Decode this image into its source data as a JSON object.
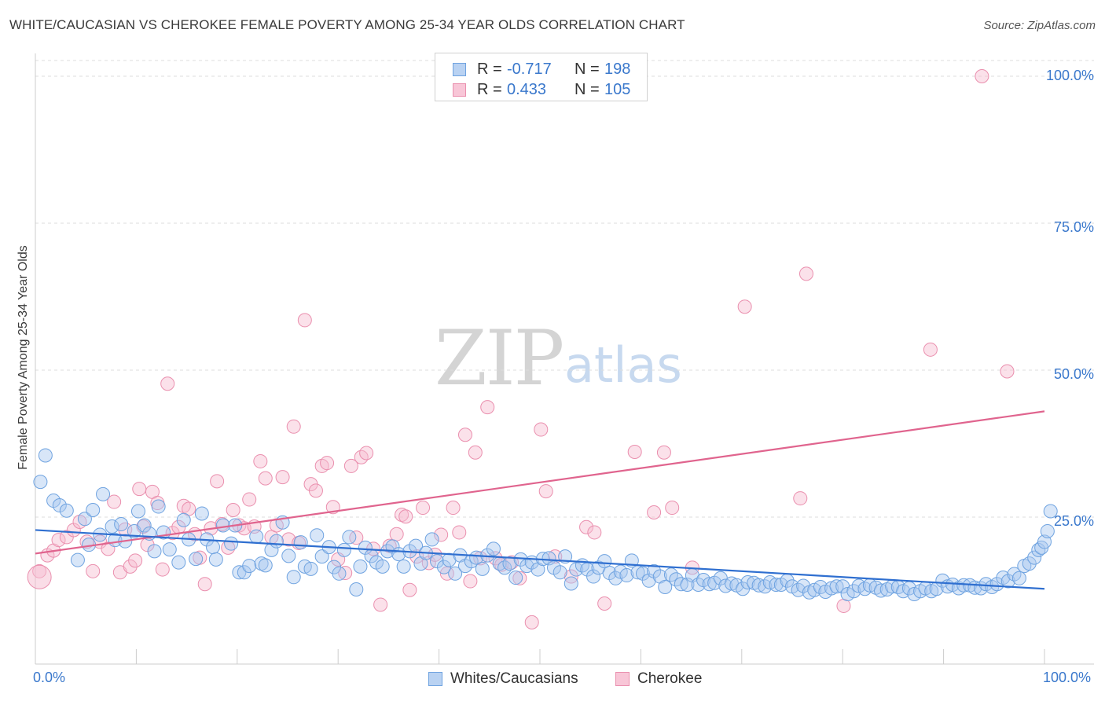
{
  "title": "WHITE/CAUCASIAN VS CHEROKEE FEMALE POVERTY AMONG 25-34 YEAR OLDS CORRELATION CHART",
  "source": "Source: ZipAtlas.com",
  "watermark": {
    "zip": "ZIP",
    "atlas": "atlas"
  },
  "legend": {
    "rows": [
      {
        "r_label": "R =",
        "r_value": "-0.717",
        "n_label": "N =",
        "n_value": "198",
        "color": "#6fa3e0"
      },
      {
        "r_label": "R =",
        "r_value": "0.433",
        "n_label": "N =",
        "n_value": "105",
        "color": "#ef8fb0"
      }
    ]
  },
  "bottom_legend": {
    "blue": "Whites/Caucasians",
    "pink": "Cherokee"
  },
  "colors": {
    "blue_fill": "#a9c8ef",
    "blue_stroke": "#6fa3e0",
    "blue_line": "#2f6fd0",
    "pink_fill": "#f6bcd0",
    "pink_stroke": "#ea8fae",
    "pink_line": "#e0648e",
    "axis_text": "#3a78cc",
    "grid": "#dddddd"
  },
  "chart_data": {
    "type": "scatter",
    "title": "WHITE/CAUCASIAN VS CHEROKEE FEMALE POVERTY AMONG 25-34 YEAR OLDS CORRELATION CHART",
    "xlabel": "",
    "ylabel": "Female Poverty Among 25-34 Year Olds",
    "xlim": [
      0,
      100
    ],
    "ylim": [
      0,
      103
    ],
    "x_tick_labels": [
      "0.0%",
      "100.0%"
    ],
    "y_ticks": [
      25,
      50,
      75,
      100
    ],
    "y_tick_labels": [
      "25.0%",
      "50.0%",
      "75.0%",
      "100.0%"
    ],
    "grid": true,
    "legend_position": "top-center",
    "series": [
      {
        "name": "Whites/Caucasians",
        "r": -0.717,
        "n": 198,
        "trend": {
          "x": [
            0,
            100
          ],
          "y": [
            22.8,
            12.8
          ]
        },
        "points": [
          [
            0.5,
            31
          ],
          [
            1,
            35.5
          ],
          [
            1.8,
            27.8
          ],
          [
            2.4,
            27
          ],
          [
            3.1,
            26.1
          ],
          [
            4.2,
            17.7
          ],
          [
            4.9,
            24.7
          ],
          [
            5.3,
            20.3
          ],
          [
            5.7,
            26.2
          ],
          [
            6.4,
            22
          ],
          [
            6.7,
            28.9
          ],
          [
            7.6,
            23.4
          ],
          [
            7.9,
            21.1
          ],
          [
            8.5,
            23.8
          ],
          [
            8.9,
            20.9
          ],
          [
            9.8,
            22.6
          ],
          [
            10.2,
            26
          ],
          [
            10.8,
            23.6
          ],
          [
            11.3,
            22.2
          ],
          [
            11.8,
            19.2
          ],
          [
            12.2,
            26.8
          ],
          [
            12.7,
            22.4
          ],
          [
            13.3,
            19.5
          ],
          [
            14.2,
            17.3
          ],
          [
            14.7,
            24.5
          ],
          [
            15.2,
            21.2
          ],
          [
            15.9,
            17.9
          ],
          [
            16.5,
            25.6
          ],
          [
            17,
            21.2
          ],
          [
            17.6,
            19.9
          ],
          [
            17.9,
            17.8
          ],
          [
            18.6,
            23.6
          ],
          [
            19.4,
            20.5
          ],
          [
            19.8,
            23.6
          ],
          [
            20.2,
            15.6
          ],
          [
            20.7,
            15.6
          ],
          [
            21.2,
            16.7
          ],
          [
            21.9,
            21.7
          ],
          [
            22.4,
            17.1
          ],
          [
            22.8,
            16.8
          ],
          [
            23.4,
            19.4
          ],
          [
            23.9,
            20.9
          ],
          [
            24.5,
            24.1
          ],
          [
            25.1,
            18.4
          ],
          [
            25.6,
            14.8
          ],
          [
            26.3,
            20.7
          ],
          [
            26.7,
            16.6
          ],
          [
            27.3,
            16.2
          ],
          [
            27.9,
            21.9
          ],
          [
            28.4,
            18.3
          ],
          [
            29.1,
            19.9
          ],
          [
            29.6,
            16.5
          ],
          [
            30.1,
            15.4
          ],
          [
            30.6,
            19.4
          ],
          [
            31.1,
            21.6
          ],
          [
            31.8,
            12.7
          ],
          [
            32.2,
            16.6
          ],
          [
            32.7,
            19.8
          ],
          [
            33.3,
            18.4
          ],
          [
            33.8,
            17.3
          ],
          [
            34.4,
            16.6
          ],
          [
            34.9,
            19.2
          ],
          [
            35.4,
            20
          ],
          [
            36,
            18.7
          ],
          [
            36.5,
            16.6
          ],
          [
            37.1,
            19.2
          ],
          [
            37.7,
            20.1
          ],
          [
            38.2,
            17.1
          ],
          [
            38.7,
            18.9
          ],
          [
            39.3,
            21.2
          ],
          [
            39.8,
            17.5
          ],
          [
            40.5,
            16.5
          ],
          [
            41,
            17.7
          ],
          [
            41.6,
            15.4
          ],
          [
            42.1,
            18.5
          ],
          [
            42.6,
            16.7
          ],
          [
            43.2,
            17.5
          ],
          [
            43.7,
            18.1
          ],
          [
            44.3,
            16.2
          ],
          [
            44.8,
            18.5
          ],
          [
            45.4,
            19.6
          ],
          [
            46,
            17.1
          ],
          [
            46.5,
            16.4
          ],
          [
            47,
            17.1
          ],
          [
            47.6,
            14.7
          ],
          [
            48.1,
            17.8
          ],
          [
            48.7,
            16.7
          ],
          [
            49.2,
            17.3
          ],
          [
            49.8,
            16.1
          ],
          [
            50.3,
            17.9
          ],
          [
            50.9,
            18
          ],
          [
            51.4,
            16.4
          ],
          [
            52,
            15.6
          ],
          [
            52.5,
            18.3
          ],
          [
            53.1,
            13.7
          ],
          [
            53.6,
            16.1
          ],
          [
            54.2,
            16.8
          ],
          [
            54.7,
            16.1
          ],
          [
            55.3,
            14.9
          ],
          [
            55.8,
            16.4
          ],
          [
            56.4,
            17.5
          ],
          [
            56.9,
            15.5
          ],
          [
            57.5,
            14.6
          ],
          [
            58,
            15.7
          ],
          [
            58.6,
            15.1
          ],
          [
            59.1,
            17.6
          ],
          [
            59.7,
            15.6
          ],
          [
            60.2,
            15.4
          ],
          [
            60.8,
            14.2
          ],
          [
            61.3,
            15.8
          ],
          [
            61.9,
            14.9
          ],
          [
            62.4,
            13.1
          ],
          [
            63,
            15.2
          ],
          [
            63.5,
            14.4
          ],
          [
            64,
            13.6
          ],
          [
            64.6,
            13.5
          ],
          [
            65.1,
            15.1
          ],
          [
            65.7,
            13.5
          ],
          [
            66.2,
            14.3
          ],
          [
            66.8,
            13.6
          ],
          [
            67.3,
            13.8
          ],
          [
            67.9,
            14.6
          ],
          [
            68.4,
            13.3
          ],
          [
            69,
            13.7
          ],
          [
            69.5,
            13.4
          ],
          [
            70.1,
            12.8
          ],
          [
            70.6,
            13.9
          ],
          [
            71.2,
            13.8
          ],
          [
            71.7,
            13.4
          ],
          [
            72.3,
            13.2
          ],
          [
            72.8,
            13.9
          ],
          [
            73.4,
            13.5
          ],
          [
            73.9,
            13.5
          ],
          [
            74.5,
            14.2
          ],
          [
            75,
            13.2
          ],
          [
            75.6,
            12.6
          ],
          [
            76.1,
            13.3
          ],
          [
            76.7,
            12.2
          ],
          [
            77.2,
            12.6
          ],
          [
            77.8,
            13.1
          ],
          [
            78.3,
            12.3
          ],
          [
            78.9,
            12.9
          ],
          [
            79.4,
            13.2
          ],
          [
            80,
            13.2
          ],
          [
            80.5,
            11.9
          ],
          [
            81.1,
            12.4
          ],
          [
            81.6,
            13.3
          ],
          [
            82.2,
            12.8
          ],
          [
            82.7,
            13.4
          ],
          [
            83.3,
            13
          ],
          [
            83.8,
            12.5
          ],
          [
            84.4,
            12.7
          ],
          [
            84.9,
            13.2
          ],
          [
            85.5,
            13.1
          ],
          [
            86,
            12.4
          ],
          [
            86.6,
            12.9
          ],
          [
            87.1,
            11.9
          ],
          [
            87.7,
            12.4
          ],
          [
            88.2,
            12.9
          ],
          [
            88.8,
            12.4
          ],
          [
            89.3,
            12.8
          ],
          [
            89.9,
            14.2
          ],
          [
            90.4,
            13.2
          ],
          [
            90.9,
            13.5
          ],
          [
            91.5,
            12.9
          ],
          [
            92,
            13.4
          ],
          [
            92.6,
            13.4
          ],
          [
            93.1,
            13
          ],
          [
            93.7,
            12.9
          ],
          [
            94.2,
            13.6
          ],
          [
            94.8,
            13.1
          ],
          [
            95.3,
            13.6
          ],
          [
            95.9,
            14.7
          ],
          [
            96.4,
            14.1
          ],
          [
            97,
            15.3
          ],
          [
            97.5,
            14.6
          ],
          [
            98,
            16.7
          ],
          [
            98.5,
            17.1
          ],
          [
            99,
            18.1
          ],
          [
            99.4,
            19.4
          ],
          [
            99.7,
            19.8
          ],
          [
            100,
            20.8
          ],
          [
            100.3,
            22.6
          ],
          [
            100.6,
            26
          ]
        ]
      },
      {
        "name": "Cherokee",
        "r": 0.433,
        "n": 105,
        "trend": {
          "x": [
            0,
            100
          ],
          "y": [
            18.8,
            43
          ]
        },
        "points": [
          [
            0.4,
            15.8
          ],
          [
            1.2,
            18.5
          ],
          [
            1.8,
            19.3
          ],
          [
            2.3,
            21.1
          ],
          [
            3.1,
            21.6
          ],
          [
            3.8,
            22.8
          ],
          [
            4.4,
            24.2
          ],
          [
            5.1,
            20.8
          ],
          [
            5.7,
            15.8
          ],
          [
            6.4,
            20.8
          ],
          [
            7.2,
            19.6
          ],
          [
            7.8,
            27.6
          ],
          [
            8.4,
            15.6
          ],
          [
            8.9,
            22.9
          ],
          [
            9.4,
            16.6
          ],
          [
            9.9,
            17.6
          ],
          [
            10.3,
            29.8
          ],
          [
            10.7,
            23.4
          ],
          [
            11.1,
            20.3
          ],
          [
            11.6,
            29.3
          ],
          [
            12.1,
            27.4
          ],
          [
            12.6,
            16.1
          ],
          [
            13.1,
            47.7
          ],
          [
            13.6,
            22.3
          ],
          [
            14.2,
            23.3
          ],
          [
            14.7,
            26.9
          ],
          [
            15.2,
            26.4
          ],
          [
            15.8,
            22.1
          ],
          [
            16.3,
            18.1
          ],
          [
            16.8,
            13.6
          ],
          [
            17.4,
            23.1
          ],
          [
            18,
            31.1
          ],
          [
            18.5,
            23.8
          ],
          [
            19.1,
            19.8
          ],
          [
            19.6,
            26.2
          ],
          [
            20.2,
            23.6
          ],
          [
            20.7,
            23.1
          ],
          [
            21.2,
            28
          ],
          [
            21.7,
            23.4
          ],
          [
            22.3,
            34.5
          ],
          [
            22.8,
            31.6
          ],
          [
            23.4,
            21.6
          ],
          [
            23.9,
            23.6
          ],
          [
            24.5,
            31.8
          ],
          [
            25.1,
            21.2
          ],
          [
            25.6,
            40.4
          ],
          [
            26.1,
            20.6
          ],
          [
            26.7,
            58.5
          ],
          [
            27.3,
            30.6
          ],
          [
            27.8,
            29.5
          ],
          [
            28.4,
            33.7
          ],
          [
            28.9,
            34.2
          ],
          [
            29.5,
            26.7
          ],
          [
            30,
            17.8
          ],
          [
            30.7,
            15.5
          ],
          [
            31.3,
            33.7
          ],
          [
            31.8,
            21.5
          ],
          [
            32.3,
            35.2
          ],
          [
            32.8,
            35.9
          ],
          [
            33.5,
            19.6
          ],
          [
            34.2,
            10.1
          ],
          [
            35.1,
            20.1
          ],
          [
            35.8,
            22.1
          ],
          [
            36.3,
            25.4
          ],
          [
            36.7,
            25.1
          ],
          [
            37.1,
            12.6
          ],
          [
            37.8,
            18.3
          ],
          [
            38.4,
            26.6
          ],
          [
            39,
            17.2
          ],
          [
            39.6,
            18.6
          ],
          [
            40.2,
            22
          ],
          [
            40.8,
            15.4
          ],
          [
            41.4,
            26.6
          ],
          [
            42,
            22.4
          ],
          [
            42.6,
            39
          ],
          [
            43.1,
            14.1
          ],
          [
            43.6,
            36
          ],
          [
            44.1,
            18
          ],
          [
            44.8,
            43.7
          ],
          [
            45.6,
            18
          ],
          [
            46.2,
            16.9
          ],
          [
            47.2,
            17.3
          ],
          [
            48,
            14.6
          ],
          [
            49.2,
            7.1
          ],
          [
            50.1,
            39.9
          ],
          [
            50.6,
            29.4
          ],
          [
            51.5,
            18.3
          ],
          [
            53.1,
            14.9
          ],
          [
            54.6,
            23.3
          ],
          [
            55.4,
            22.4
          ],
          [
            56.4,
            10.3
          ],
          [
            59.4,
            36.1
          ],
          [
            61.3,
            25.8
          ],
          [
            62.3,
            36
          ],
          [
            63.1,
            26.6
          ],
          [
            65.1,
            16.4
          ],
          [
            70.3,
            60.8
          ],
          [
            75.8,
            28.2
          ],
          [
            76.4,
            66.4
          ],
          [
            80.1,
            9.9
          ],
          [
            88.7,
            53.5
          ],
          [
            93.8,
            100
          ],
          [
            96.3,
            49.8
          ]
        ]
      }
    ]
  }
}
